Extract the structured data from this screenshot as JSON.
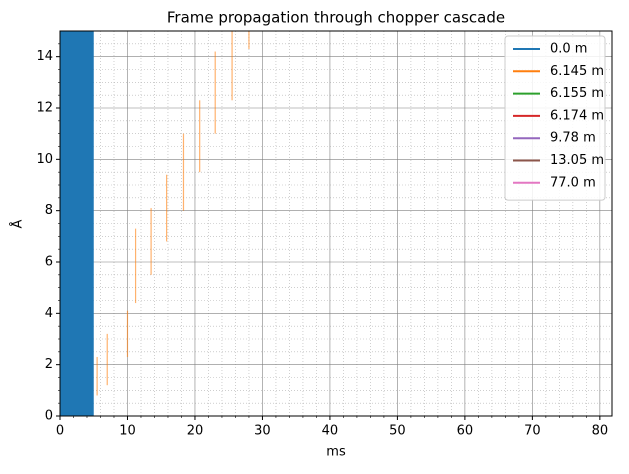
{
  "chart_data": {
    "type": "frames",
    "title": "Frame propagation through chopper cascade",
    "xlabel": "ms",
    "ylabel": "Å",
    "xlim": [
      0,
      81.8
    ],
    "ylim": [
      0,
      15
    ],
    "xticks": [
      0,
      10,
      20,
      30,
      40,
      50,
      60,
      70,
      80
    ],
    "yticks": [
      0,
      2,
      4,
      6,
      8,
      10,
      12,
      14
    ],
    "xminorticks": [
      2,
      4,
      6,
      8,
      12,
      14,
      16,
      18,
      22,
      24,
      26,
      28,
      32,
      34,
      36,
      38,
      42,
      44,
      46,
      48,
      52,
      54,
      56,
      58,
      62,
      64,
      66,
      68,
      72,
      74,
      76,
      78
    ],
    "yminorticks": [
      0.5,
      1,
      1.5,
      2.5,
      3,
      3.5,
      4.5,
      5,
      5.5,
      6.5,
      7,
      7.5,
      8.5,
      9,
      9.5,
      10.5,
      11,
      11.5,
      12.5,
      13,
      13.5,
      14.5
    ],
    "grid": true,
    "legend": "upper right",
    "series": [
      {
        "name": "0.0 m",
        "color": "#1f77b4",
        "x": [
          0,
          5
        ],
        "ranges": [
          [
            0,
            15
          ]
        ]
      },
      {
        "name": "6.145 m",
        "color": "#ff7f0e",
        "x": [
          5.5,
          7,
          10,
          11.2,
          13.5,
          15.8,
          18.3,
          20.7,
          23,
          25.5,
          28
        ],
        "ranges": [
          [
            0.8,
            2.3
          ],
          [
            1.2,
            3.2
          ],
          [
            2.3,
            4.1
          ],
          [
            4.4,
            7.3
          ],
          [
            5.5,
            8.1
          ],
          [
            6.8,
            9.4
          ],
          [
            8,
            11
          ],
          [
            9.5,
            12.3
          ],
          [
            11,
            14.2
          ],
          [
            12.3,
            15
          ],
          [
            14.3,
            15
          ]
        ]
      },
      {
        "name": "6.155 m",
        "color": "#2ca02c"
      },
      {
        "name": "6.174 m",
        "color": "#d62728"
      },
      {
        "name": "9.78 m",
        "color": "#9467bd"
      },
      {
        "name": "13.05 m",
        "color": "#8c564b"
      },
      {
        "name": "77.0 m",
        "color": "#e377c2"
      }
    ]
  }
}
